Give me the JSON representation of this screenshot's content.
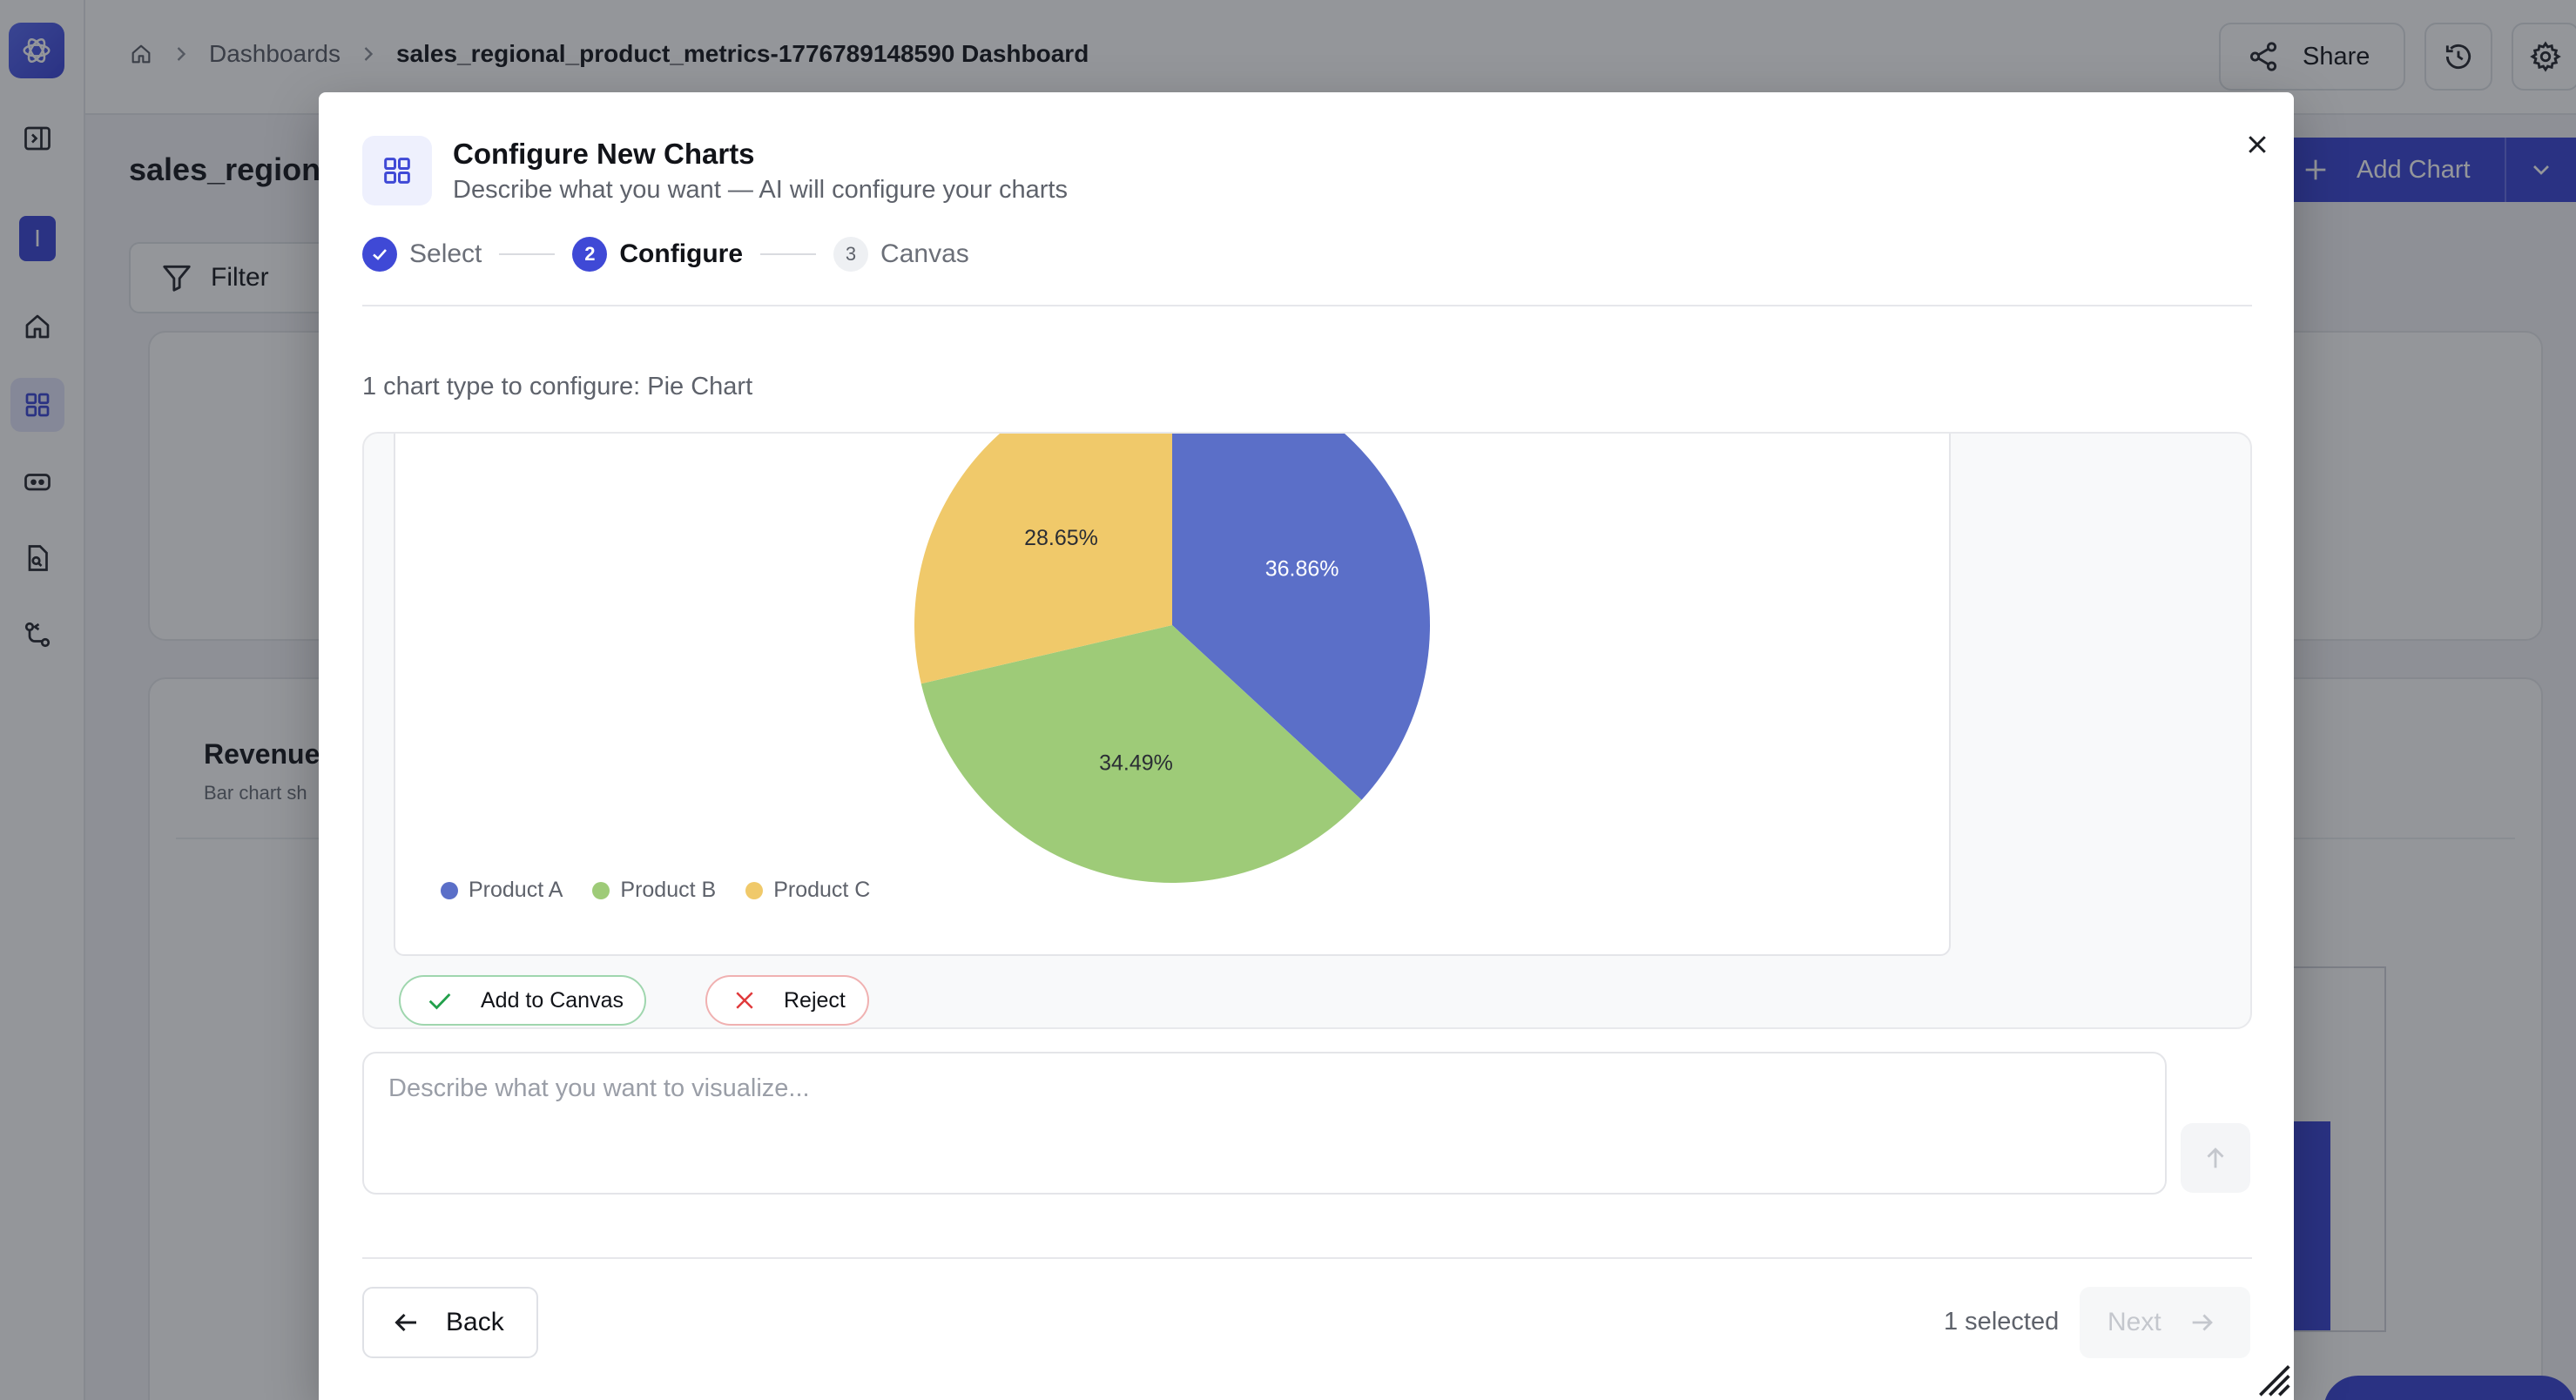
{
  "breadcrumb": {
    "home_icon": "home-icon",
    "section": "Dashboards",
    "current": "sales_regional_product_metrics-1776789148590 Dashboard"
  },
  "topbar": {
    "share_label": "Share",
    "history_icon": "history-icon",
    "settings_icon": "gear-icon"
  },
  "sidebar": {
    "user_initial": "I",
    "items": [
      "sidebar-toggle",
      "home",
      "dashboards",
      "agents",
      "documents",
      "workflows"
    ]
  },
  "page": {
    "title": "sales_regiona",
    "filter_label": "Filter",
    "add_chart_label": "Add Chart",
    "card_title": "Revenue",
    "card_subtitle": "Bar chart sh",
    "accent_color": "#3f49d6"
  },
  "modal": {
    "title": "Configure New Charts",
    "subtitle": "Describe what you want — AI will configure your charts",
    "steps": [
      {
        "label": "Select",
        "state": "done"
      },
      {
        "number": "2",
        "label": "Configure",
        "state": "active"
      },
      {
        "number": "3",
        "label": "Canvas",
        "state": "pending"
      }
    ],
    "config_label": "1 chart type to configure: Pie Chart",
    "add_label": "Add to Canvas",
    "reject_label": "Reject",
    "prompt_placeholder": "Describe what you want to visualize...",
    "back_label": "Back",
    "selected_text": "1 selected",
    "next_label": "Next"
  },
  "chart_data": {
    "type": "pie",
    "categories": [
      "Product A",
      "Product B",
      "Product C"
    ],
    "values": [
      36.86,
      34.49,
      28.65
    ],
    "labels": [
      "36.86%",
      "34.49%",
      "28.65%"
    ],
    "colors": [
      "#5b6fc8",
      "#9ecb78",
      "#f0c96a"
    ],
    "legend_position": "bottom-left"
  }
}
